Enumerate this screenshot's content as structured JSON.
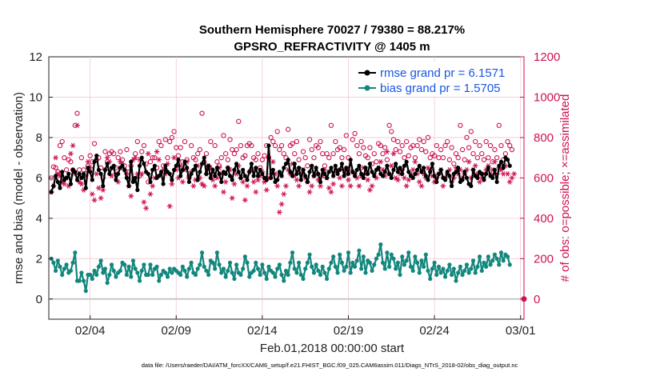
{
  "chart_data": {
    "type": "line",
    "title": "Southern Hemisphere 70027 / 79380 = 88.217%",
    "subtitle": "GPSRO_REFRACTIVITY @ 1405 m",
    "xlabel": "Feb.01,2018 00:00:00 start",
    "ylabel": "rmse and bias (model - observation)",
    "ylabel_right": "# of obs: o=possible; ×=assimilated",
    "footnote": "data file: /Users/raeder/DAI/ATM_forcXX/CAM6_setup/f.e21.FHIST_BGC.f09_025.CAM6assim.011/Diags_NTrS_2018-02/obs_diag_output.nc",
    "x_ticks": [
      "02/04",
      "02/09",
      "02/14",
      "02/19",
      "02/24",
      "03/01"
    ],
    "x_tick_days": [
      4,
      9,
      14,
      19,
      24,
      29
    ],
    "xlim_days": [
      1.6,
      29.2
    ],
    "ylim": [
      -1,
      12
    ],
    "y_ticks": [
      "0",
      "2",
      "4",
      "6",
      "8",
      "10",
      "12"
    ],
    "ylim_right": [
      -100,
      1200
    ],
    "y_ticks_right": [
      "0",
      "200",
      "400",
      "600",
      "800",
      "1000",
      "1200"
    ],
    "grid": true,
    "legend_position": "top-right",
    "x_days": [
      1.75,
      1.875,
      2.0,
      2.125,
      2.25,
      2.375,
      2.5,
      2.625,
      2.75,
      2.875,
      3.0,
      3.125,
      3.25,
      3.375,
      3.5,
      3.625,
      3.75,
      3.875,
      4.0,
      4.125,
      4.25,
      4.375,
      4.5,
      4.625,
      4.75,
      4.875,
      5.0,
      5.125,
      5.25,
      5.375,
      5.5,
      5.625,
      5.75,
      5.875,
      6.0,
      6.125,
      6.25,
      6.375,
      6.5,
      6.625,
      6.75,
      6.875,
      7.0,
      7.125,
      7.25,
      7.375,
      7.5,
      7.625,
      7.75,
      7.875,
      8.0,
      8.125,
      8.25,
      8.375,
      8.5,
      8.625,
      8.75,
      8.875,
      9.0,
      9.125,
      9.25,
      9.375,
      9.5,
      9.625,
      9.75,
      9.875,
      10.0,
      10.125,
      10.25,
      10.375,
      10.5,
      10.625,
      10.75,
      10.875,
      11.0,
      11.125,
      11.25,
      11.375,
      11.5,
      11.625,
      11.75,
      11.875,
      12.0,
      12.125,
      12.25,
      12.375,
      12.5,
      12.625,
      12.75,
      12.875,
      13.0,
      13.125,
      13.25,
      13.375,
      13.5,
      13.625,
      13.75,
      13.875,
      14.0,
      14.125,
      14.25,
      14.375,
      14.5,
      14.625,
      14.75,
      14.875,
      15.0,
      15.125,
      15.25,
      15.375,
      15.5,
      15.625,
      15.75,
      15.875,
      16.0,
      16.125,
      16.25,
      16.375,
      16.5,
      16.625,
      16.75,
      16.875,
      17.0,
      17.125,
      17.25,
      17.375,
      17.5,
      17.625,
      17.75,
      17.875,
      18.0,
      18.125,
      18.25,
      18.375,
      18.5,
      18.625,
      18.75,
      18.875,
      19.0,
      19.125,
      19.25,
      19.375,
      19.5,
      19.625,
      19.75,
      19.875,
      20.0,
      20.125,
      20.25,
      20.375,
      20.5,
      20.625,
      20.75,
      20.875,
      21.0,
      21.125,
      21.25,
      21.375,
      21.5,
      21.625,
      21.75,
      21.875,
      22.0,
      22.125,
      22.25,
      22.375,
      22.5,
      22.625,
      22.75,
      22.875,
      23.0,
      23.125,
      23.25,
      23.375,
      23.5,
      23.625,
      23.75,
      23.875,
      24.0,
      24.125,
      24.25,
      24.375,
      24.5,
      24.625,
      24.75,
      24.875,
      25.0,
      25.125,
      25.25,
      25.375,
      25.5,
      25.625,
      25.75,
      25.875,
      26.0,
      26.125,
      26.25,
      26.375,
      26.5,
      26.625,
      26.75,
      26.875,
      27.0,
      27.125,
      27.25,
      27.375,
      27.5,
      27.625,
      27.75,
      27.875,
      28.0,
      28.125,
      28.25,
      28.375,
      28.5,
      28.625,
      28.75,
      28.875
    ],
    "series": [
      {
        "name": "rmse grand pr = 6.1571",
        "color": "#000000",
        "axis": "left",
        "marker": "filled-circle",
        "values": [
          5.3,
          5.6,
          6.1,
          5.8,
          5.5,
          6.3,
          5.9,
          6.0,
          6.2,
          5.7,
          6.4,
          6.3,
          5.9,
          6.2,
          6.0,
          6.2,
          5.5,
          6.5,
          6.3,
          5.9,
          6.8,
          7.1,
          6.4,
          6.2,
          5.6,
          6.4,
          6.7,
          6.2,
          6.5,
          6.6,
          5.9,
          6.2,
          6.5,
          6.6,
          6.4,
          6.0,
          5.6,
          6.8,
          5.8,
          6.0,
          5.4,
          6.6,
          7.0,
          6.7,
          6.3,
          6.2,
          5.8,
          6.4,
          6.6,
          6.0,
          6.1,
          6.3,
          5.7,
          6.6,
          6.3,
          6.2,
          5.9,
          6.4,
          6.6,
          6.9,
          6.1,
          6.4,
          6.8,
          6.5,
          5.8,
          6.2,
          6.4,
          6.6,
          5.9,
          6.3,
          6.7,
          7.0,
          6.2,
          6.6,
          6.0,
          6.4,
          6.1,
          6.5,
          6.2,
          5.8,
          6.3,
          6.2,
          6.5,
          6.1,
          5.9,
          6.4,
          6.7,
          6.3,
          6.0,
          6.4,
          6.1,
          5.9,
          6.3,
          6.7,
          6.1,
          6.5,
          6.1,
          6.4,
          6.2,
          6.0,
          5.9,
          7.6,
          6.0,
          6.4,
          5.8,
          5.9,
          6.3,
          6.1,
          6.5,
          6.7,
          6.9,
          6.3,
          6.1,
          6.7,
          6.2,
          6.5,
          5.9,
          6.4,
          6.1,
          5.8,
          6.3,
          6.6,
          6.1,
          6.5,
          6.2,
          5.8,
          6.4,
          6.2,
          6.0,
          6.3,
          6.5,
          6.1,
          6.6,
          6.2,
          6.4,
          6.7,
          6.1,
          6.5,
          6.2,
          6.9,
          6.3,
          6.1,
          6.4,
          6.6,
          6.2,
          6.0,
          6.5,
          6.2,
          6.7,
          6.3,
          6.1,
          6.4,
          6.5,
          6.2,
          6.1,
          6.3,
          6.6,
          6.2,
          6.0,
          6.4,
          6.7,
          6.3,
          6.5,
          6.2,
          6.6,
          6.8,
          6.3,
          6.1,
          6.0,
          6.2,
          6.4,
          6.6,
          6.3,
          6.5,
          6.1,
          5.9,
          6.3,
          6.7,
          6.1,
          5.8,
          6.2,
          6.4,
          6.0,
          5.9,
          6.3,
          6.1,
          5.6,
          6.2,
          6.3,
          6.5,
          5.8,
          5.9,
          6.3,
          6.0,
          5.7,
          5.6,
          6.4,
          6.1,
          6.0,
          6.3,
          6.2,
          5.9,
          6.2,
          6.5,
          6.1,
          6.0,
          6.4,
          5.8,
          6.6,
          6.8,
          6.5,
          7.0,
          6.9,
          6.6
        ]
      },
      {
        "name": "bias grand pr = 1.5705",
        "color": "#11877c",
        "axis": "left",
        "marker": "filled-circle",
        "values": [
          2.0,
          1.8,
          1.4,
          1.9,
          1.6,
          1.2,
          1.5,
          1.7,
          1.3,
          1.4,
          1.8,
          2.3,
          0.9,
          0.9,
          1.3,
          0.9,
          0.4,
          1.2,
          1.2,
          1.0,
          1.4,
          1.2,
          1.6,
          1.9,
          1.3,
          1.5,
          0.8,
          1.2,
          1.7,
          1.4,
          1.1,
          1.3,
          1.4,
          1.8,
          1.7,
          1.2,
          1.6,
          1.1,
          1.9,
          1.5,
          1.3,
          0.9,
          1.4,
          1.7,
          1.2,
          1.2,
          1.7,
          1.2,
          1.5,
          1.6,
          0.9,
          1.2,
          1.4,
          1.3,
          1.1,
          1.5,
          1.3,
          1.5,
          1.4,
          1.3,
          1.2,
          1.6,
          1.4,
          1.1,
          1.5,
          1.8,
          1.3,
          1.2,
          1.5,
          1.7,
          2.3,
          1.6,
          1.4,
          1.2,
          1.9,
          1.8,
          1.5,
          2.3,
          1.7,
          1.3,
          1.5,
          1.1,
          1.4,
          1.8,
          1.3,
          1.0,
          1.7,
          1.3,
          1.2,
          1.5,
          2.1,
          1.8,
          1.1,
          1.3,
          1.4,
          1.8,
          1.5,
          1.2,
          1.7,
          1.3,
          1.0,
          1.6,
          1.4,
          1.3,
          1.1,
          1.5,
          1.7,
          1.2,
          0.9,
          1.4,
          1.2,
          1.8,
          2.3,
          1.5,
          1.3,
          1.8,
          1.2,
          1.0,
          1.5,
          1.8,
          2.2,
          1.6,
          1.3,
          1.7,
          1.4,
          1.2,
          1.6,
          1.3,
          1.0,
          1.5,
          1.8,
          2.1,
          1.6,
          1.3,
          2.2,
          1.8,
          1.4,
          1.6,
          2.3,
          1.3,
          1.8,
          1.6,
          1.9,
          2.4,
          1.5,
          2.1,
          1.3,
          1.9,
          1.8,
          1.4,
          1.7,
          2.0,
          2.2,
          2.7,
          1.8,
          1.5,
          2.3,
          1.6,
          2.2,
          2.0,
          1.5,
          1.8,
          1.2,
          2.1,
          1.7,
          1.9,
          2.3,
          1.6,
          1.4,
          2.1,
          1.8,
          1.3,
          1.9,
          1.6,
          2.2,
          1.4,
          1.0,
          1.5,
          1.8,
          1.2,
          1.6,
          1.3,
          1.5,
          1.1,
          1.4,
          1.7,
          1.2,
          1.5,
          0.9,
          1.3,
          1.6,
          1.2,
          1.4,
          1.7,
          1.3,
          1.5,
          1.9,
          1.3,
          1.6,
          2.1,
          1.4,
          1.8,
          1.6,
          2.1,
          1.7,
          1.9,
          2.2,
          2.0,
          1.7,
          2.3,
          1.9,
          2.2,
          2.1,
          1.7
        ]
      },
      {
        "name": "possible (o)",
        "color": "#cc1155",
        "axis": "right",
        "marker": "open-circle",
        "values": [
          600,
          655,
          650,
          630,
          760,
          780,
          700,
          640,
          690,
          680,
          640,
          860,
          920,
          640,
          700,
          640,
          620,
          660,
          710,
          680,
          770,
          690,
          700,
          650,
          600,
          730,
          680,
          720,
          730,
          720,
          650,
          700,
          730,
          690,
          660,
          740,
          630,
          660,
          590,
          720,
          780,
          610,
          730,
          760,
          670,
          580,
          680,
          700,
          700,
          650,
          780,
          760,
          660,
          790,
          700,
          780,
          800,
          830,
          750,
          710,
          750,
          680,
          780,
          690,
          600,
          760,
          700,
          690,
          720,
          740,
          920,
          680,
          720,
          650,
          780,
          620,
          760,
          680,
          660,
          700,
          810,
          720,
          690,
          790,
          740,
          720,
          740,
          880,
          760,
          700,
          710,
          760,
          770,
          760,
          700,
          690,
          720,
          650,
          690,
          710,
          760,
          700,
          800,
          780,
          760,
          830,
          740,
          760,
          720,
          700,
          840,
          760,
          770,
          720,
          780,
          690,
          640,
          730,
          700,
          660,
          790,
          740,
          700,
          760,
          750,
          780,
          720,
          660,
          720,
          700,
          860,
          720,
          780,
          740,
          750,
          700,
          740,
          810,
          700,
          650,
          790,
          820,
          760,
          720,
          780,
          750,
          710,
          700,
          750,
          670,
          720,
          680,
          770,
          760,
          720,
          750,
          690,
          860,
          830,
          790,
          740,
          780,
          730,
          760,
          700,
          780,
          710,
          750,
          760,
          700,
          760,
          790,
          740,
          780,
          730,
          800,
          700,
          720,
          710,
          760,
          700,
          740,
          700,
          760,
          780,
          690,
          750,
          670,
          720,
          700,
          860,
          740,
          690,
          800,
          750,
          830,
          720,
          780,
          700,
          760,
          720,
          690,
          780,
          700,
          760,
          680,
          740,
          700,
          860,
          760,
          690,
          720,
          780,
          760,
          740
        ]
      },
      {
        "name": "assimilated (×)",
        "color": "#cc1155",
        "axis": "right",
        "marker": "asterisk",
        "values": [
          530,
          560,
          700,
          620,
          610,
          580,
          570,
          600,
          560,
          720,
          760,
          620,
          860,
          580,
          570,
          540,
          610,
          680,
          650,
          520,
          490,
          620,
          550,
          500,
          540,
          640,
          700,
          680,
          610,
          650,
          620,
          580,
          680,
          670,
          640,
          620,
          560,
          510,
          690,
          700,
          620,
          690,
          620,
          480,
          450,
          720,
          520,
          560,
          600,
          730,
          690,
          620,
          640,
          620,
          670,
          460,
          570,
          700,
          640,
          600,
          660,
          580,
          640,
          680,
          610,
          630,
          560,
          590,
          660,
          600,
          570,
          560,
          620,
          660,
          650,
          590,
          560,
          600,
          650,
          620,
          530,
          580,
          650,
          640,
          500,
          570,
          620,
          660,
          600,
          580,
          490,
          560,
          630,
          640,
          580,
          530,
          590,
          610,
          630,
          580,
          540,
          600,
          620,
          680,
          620,
          560,
          430,
          470,
          520,
          560,
          640,
          620,
          670,
          610,
          590,
          560,
          620,
          640,
          600,
          580,
          530,
          560,
          610,
          620,
          590,
          560,
          610,
          640,
          600,
          550,
          530,
          570,
          630,
          640,
          600,
          560,
          640,
          620,
          590,
          560,
          630,
          620,
          600,
          560,
          610,
          650,
          620,
          590,
          540,
          560,
          620,
          600,
          650,
          680,
          640,
          610,
          730,
          620,
          660,
          720,
          600,
          590,
          620,
          640,
          600,
          560,
          590,
          620,
          640,
          680,
          620,
          580,
          560,
          620,
          600,
          650,
          640,
          610,
          580,
          600,
          620,
          640,
          560,
          600,
          620,
          640,
          580,
          600,
          650,
          620,
          640,
          600,
          620,
          640,
          680,
          600,
          640,
          660,
          620,
          580,
          600,
          620,
          640,
          660,
          620,
          640,
          680,
          620,
          650,
          640,
          620,
          660,
          620,
          580,
          600,
          620
        ]
      }
    ],
    "annotations": [
      {
        "text": "zero line",
        "y": 0
      }
    ]
  }
}
